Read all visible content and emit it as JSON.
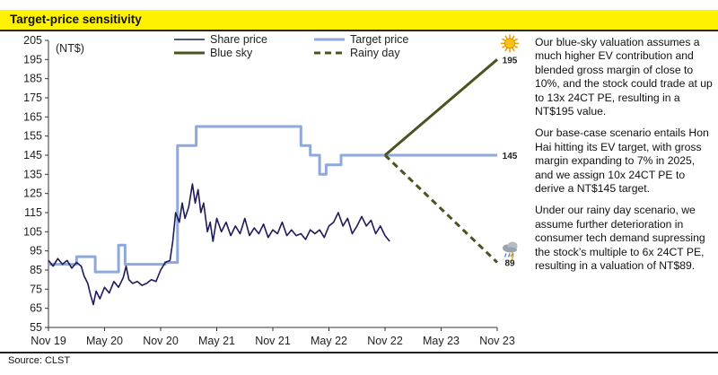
{
  "header": {
    "title": "Target-price sensitivity"
  },
  "source": "Source: CLST",
  "commentary": [
    "Our blue-sky valuation assumes a much higher EV contribution and blended gross margin of close to 10%, and the stock could trade at up to 13x 24CT PE, resulting in a NT$195 value.",
    "Our base-case scenario entails Hon Hai hitting its EV target, with gross margin expanding to 7% in 2025, and we assign 10x 24CT PE to derive a NT$145 target.",
    "Under our rainy day scenario, we assume further deterioration in consumer tech demand supressing the stock’s multiple to 6x 24CT PE, resulting in a valuation of NT$89."
  ],
  "chart_data": {
    "type": "line",
    "ylabel": "(NT$)",
    "ylim": [
      55,
      205
    ],
    "y_ticks": [
      55,
      65,
      75,
      85,
      95,
      105,
      115,
      125,
      135,
      145,
      155,
      165,
      175,
      185,
      195,
      205
    ],
    "x_ticks": [
      "Nov 19",
      "May 20",
      "Nov 20",
      "May 21",
      "Nov 21",
      "May 22",
      "Nov 22",
      "May 23",
      "Nov 23"
    ],
    "x_unit": "months since Nov 19",
    "xlim": [
      0,
      48
    ],
    "series": [
      {
        "name": "Share price",
        "color": "#1f1a5c",
        "style": "solid-thin",
        "points": [
          [
            0,
            90
          ],
          [
            0.5,
            87
          ],
          [
            1,
            91
          ],
          [
            1.5,
            88
          ],
          [
            2,
            90
          ],
          [
            2.5,
            86
          ],
          [
            3,
            89
          ],
          [
            3.5,
            87
          ],
          [
            3.8,
            82
          ],
          [
            4.2,
            78
          ],
          [
            4.5,
            72
          ],
          [
            4.8,
            67
          ],
          [
            5.1,
            74
          ],
          [
            5.5,
            70
          ],
          [
            6,
            76
          ],
          [
            6.5,
            73
          ],
          [
            7,
            79
          ],
          [
            7.5,
            76
          ],
          [
            8,
            81
          ],
          [
            8.3,
            87
          ],
          [
            8.6,
            80
          ],
          [
            9,
            78
          ],
          [
            9.5,
            79
          ],
          [
            10,
            77
          ],
          [
            10.5,
            78
          ],
          [
            11,
            80
          ],
          [
            11.5,
            79
          ],
          [
            12,
            85
          ],
          [
            12.5,
            89
          ],
          [
            13,
            90
          ],
          [
            13.3,
            100
          ],
          [
            13.6,
            115
          ],
          [
            14,
            110
          ],
          [
            14.3,
            120
          ],
          [
            14.6,
            112
          ],
          [
            15,
            118
          ],
          [
            15.4,
            130
          ],
          [
            15.7,
            120
          ],
          [
            16,
            127
          ],
          [
            16.3,
            115
          ],
          [
            16.6,
            120
          ],
          [
            17,
            105
          ],
          [
            17.3,
            110
          ],
          [
            17.6,
            100
          ],
          [
            18,
            112
          ],
          [
            18.5,
            105
          ],
          [
            19,
            110
          ],
          [
            19.5,
            103
          ],
          [
            20,
            108
          ],
          [
            20.5,
            104
          ],
          [
            21,
            112
          ],
          [
            21.5,
            103
          ],
          [
            22,
            107
          ],
          [
            22.5,
            104
          ],
          [
            23,
            109
          ],
          [
            23.5,
            102
          ],
          [
            24,
            106
          ],
          [
            24.5,
            104
          ],
          [
            25,
            110
          ],
          [
            25.5,
            103
          ],
          [
            26,
            106
          ],
          [
            26.5,
            103
          ],
          [
            27,
            104
          ],
          [
            27.5,
            101
          ],
          [
            28,
            106
          ],
          [
            28.5,
            104
          ],
          [
            29,
            106
          ],
          [
            29.5,
            102
          ],
          [
            30,
            108
          ],
          [
            30.5,
            110
          ],
          [
            31,
            115
          ],
          [
            31.5,
            108
          ],
          [
            32,
            112
          ],
          [
            32.5,
            104
          ],
          [
            33,
            108
          ],
          [
            33.5,
            113
          ],
          [
            34,
            108
          ],
          [
            34.5,
            111
          ],
          [
            35,
            104
          ],
          [
            35.5,
            108
          ],
          [
            36,
            103
          ],
          [
            36.5,
            100
          ]
        ]
      },
      {
        "name": "Target price",
        "color": "#8ea9db",
        "style": "solid-thick",
        "points": [
          [
            0,
            88
          ],
          [
            3,
            88
          ],
          [
            3,
            92
          ],
          [
            5,
            92
          ],
          [
            5,
            84
          ],
          [
            7.5,
            84
          ],
          [
            7.5,
            98
          ],
          [
            8.2,
            98
          ],
          [
            8.2,
            88
          ],
          [
            12.5,
            88
          ],
          [
            12.5,
            89
          ],
          [
            13,
            89
          ],
          [
            13,
            89
          ],
          [
            13.8,
            89
          ],
          [
            13.8,
            150
          ],
          [
            15.8,
            150
          ],
          [
            15.8,
            160
          ],
          [
            27,
            160
          ],
          [
            27,
            150
          ],
          [
            28,
            150
          ],
          [
            28,
            145
          ],
          [
            29,
            145
          ],
          [
            29,
            135
          ],
          [
            29.7,
            135
          ],
          [
            29.7,
            140
          ],
          [
            31.3,
            140
          ],
          [
            31.3,
            145
          ],
          [
            48,
            145
          ]
        ]
      },
      {
        "name": "Blue sky",
        "color": "#4b5320",
        "style": "solid-thick",
        "points": [
          [
            36,
            145
          ],
          [
            48,
            195
          ]
        ]
      },
      {
        "name": "Rainy day",
        "color": "#4b5320",
        "style": "dashed",
        "points": [
          [
            36,
            145
          ],
          [
            48,
            89
          ]
        ]
      }
    ],
    "end_labels": [
      {
        "value": 195,
        "label": "195",
        "icon": "sun-icon"
      },
      {
        "value": 145,
        "label": "145"
      },
      {
        "value": 89,
        "label": "89",
        "icon": "rain-cloud-icon"
      }
    ]
  }
}
